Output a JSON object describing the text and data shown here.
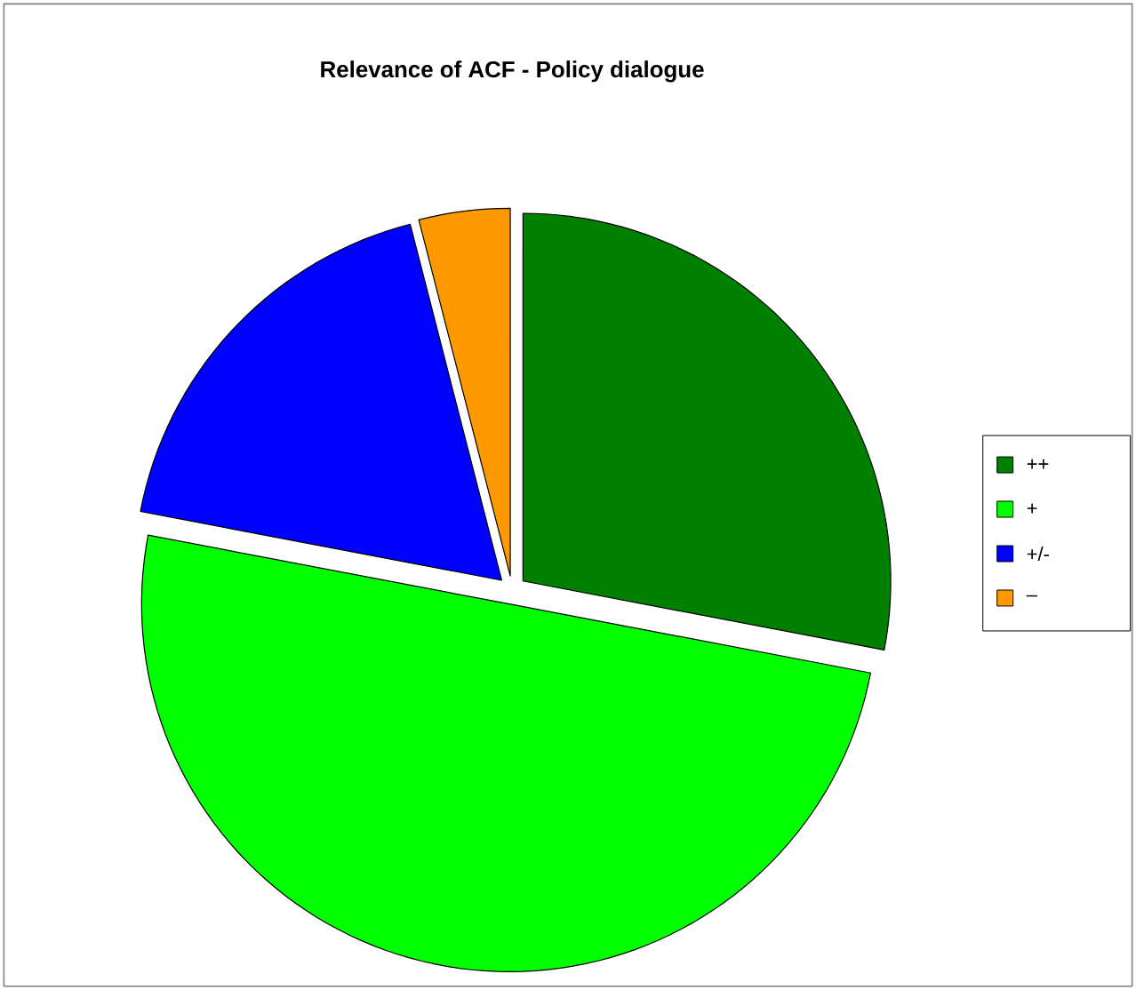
{
  "chart_data": {
    "type": "pie",
    "title": "Relevance of ACF - Policy dialogue",
    "categories": [
      "++",
      "+",
      "+/-",
      "–"
    ],
    "values": [
      28,
      50,
      18,
      4
    ],
    "colors": [
      "#008000",
      "#00ff00",
      "#0000ff",
      "#ff9900"
    ],
    "legend": "right"
  }
}
